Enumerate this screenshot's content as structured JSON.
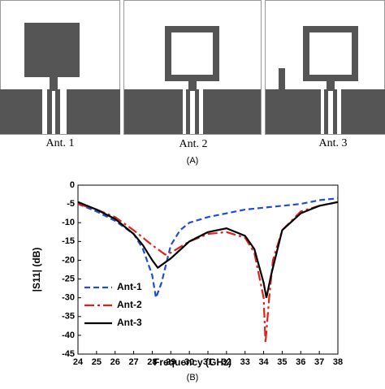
{
  "panel_a": {
    "antennas": [
      "Ant. 1",
      "Ant. 2",
      "Ant. 3"
    ],
    "caption": "(A)"
  },
  "chart_data": {
    "type": "line",
    "x_label": "Frequency (GHz)",
    "y_label": "|S11| (dB)",
    "caption": "(B)",
    "xlim": [
      24,
      38
    ],
    "xticks": [
      24,
      25,
      26,
      27,
      28,
      29,
      30,
      31,
      32,
      33,
      34,
      35,
      36,
      37,
      38
    ],
    "ylim": [
      -45,
      0
    ],
    "yticks": [
      0,
      -5,
      -10,
      -15,
      -20,
      -25,
      -30,
      -35,
      -40,
      -45
    ],
    "legend": "lower-left",
    "series": [
      {
        "name": "Ant-1",
        "color": "#1f4fd0",
        "dash": "dash",
        "x": [
          24,
          25,
          26,
          27,
          27.5,
          28,
          28.2,
          28.5,
          29,
          29.5,
          30,
          31,
          32,
          33,
          34,
          35,
          36,
          37,
          38
        ],
        "values": [
          -5,
          -7,
          -9.5,
          -13,
          -17,
          -24,
          -30,
          -26,
          -16,
          -12,
          -10,
          -8.5,
          -7.5,
          -6.5,
          -6,
          -5.5,
          -5,
          -4,
          -3.5
        ]
      },
      {
        "name": "Ant-2",
        "color": "#e0201b",
        "dash": "dashdot",
        "x": [
          24,
          25,
          26,
          27,
          28,
          28.7,
          29,
          30,
          31,
          32,
          33,
          33.5,
          34,
          34.1,
          34.3,
          34.5,
          35,
          36,
          37,
          38
        ],
        "values": [
          -5,
          -6.5,
          -8.5,
          -12,
          -16,
          -18.5,
          -18,
          -15,
          -13,
          -12.5,
          -14,
          -18,
          -30,
          -42,
          -30,
          -20,
          -12,
          -7,
          -5.5,
          -4.5
        ]
      },
      {
        "name": "Ant-3",
        "color": "#000000",
        "dash": "solid",
        "x": [
          24,
          25,
          26,
          27,
          27.5,
          28,
          28.3,
          29,
          30,
          31,
          32,
          33,
          33.5,
          34,
          34.15,
          34.4,
          35,
          36,
          37,
          38
        ],
        "values": [
          -4.5,
          -6.5,
          -9,
          -13,
          -16,
          -20,
          -22,
          -19.5,
          -15,
          -12.5,
          -11.5,
          -13.5,
          -17,
          -26,
          -30,
          -24,
          -12,
          -7.5,
          -5.5,
          -4.5
        ]
      }
    ]
  }
}
